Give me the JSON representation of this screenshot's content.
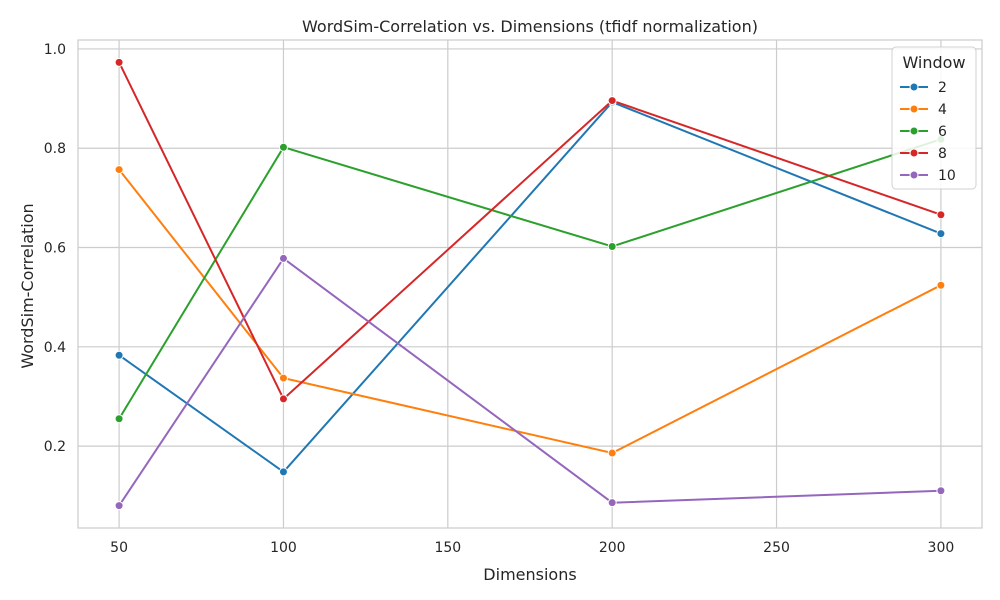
{
  "chart_data": {
    "type": "line",
    "title": "WordSim-Correlation vs. Dimensions (tfidf normalization)",
    "xlabel": "Dimensions",
    "ylabel": "WordSim-Correlation",
    "x": [
      50,
      100,
      200,
      300
    ],
    "xticks": [
      50,
      100,
      150,
      200,
      250,
      300
    ],
    "yticks": [
      0.2,
      0.4,
      0.6,
      0.8,
      1.0
    ],
    "xlim": [
      37.5,
      312.5
    ],
    "ylim": [
      0.035,
      1.018
    ],
    "grid": true,
    "legend": {
      "title": "Window",
      "position": "top-right"
    },
    "series": [
      {
        "name": "2",
        "color": "#1f77b4",
        "values": [
          0.383,
          0.148,
          0.893,
          0.628
        ]
      },
      {
        "name": "4",
        "color": "#ff7f0e",
        "values": [
          0.757,
          0.337,
          0.186,
          0.524
        ]
      },
      {
        "name": "6",
        "color": "#2ca02c",
        "values": [
          0.255,
          0.802,
          0.602,
          0.818
        ]
      },
      {
        "name": "8",
        "color": "#d62728",
        "values": [
          0.973,
          0.295,
          0.896,
          0.666
        ]
      },
      {
        "name": "10",
        "color": "#9467bd",
        "values": [
          0.08,
          0.578,
          0.086,
          0.11
        ]
      }
    ]
  }
}
